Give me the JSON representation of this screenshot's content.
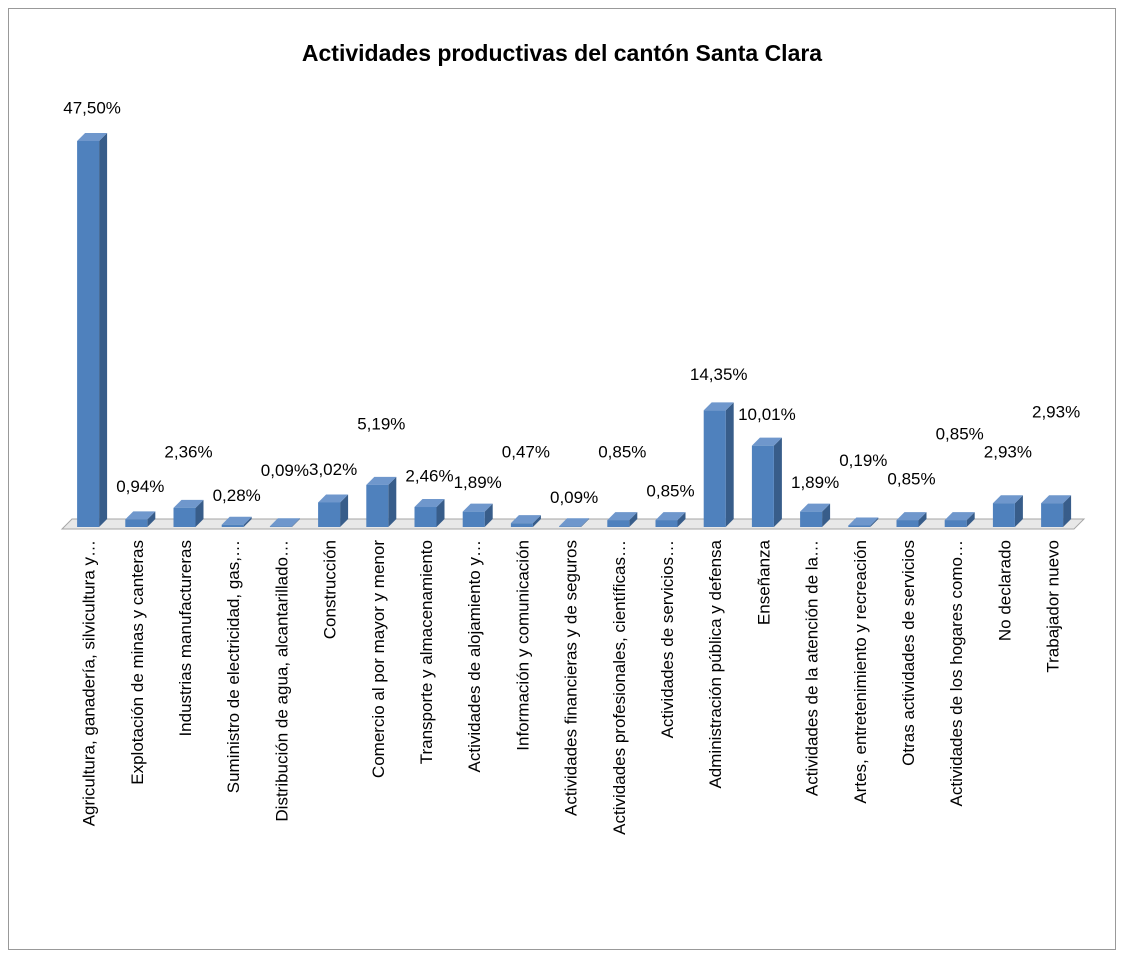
{
  "chart_data": {
    "type": "bar3d",
    "title": "Actividades productivas del cantón Santa Clara",
    "categories": [
      "Agricultura, ganadería, silvicultura y…",
      "Explotación de minas y canteras",
      "Industrias manufactureras",
      "Suministro de electricidad, gas,…",
      "Distribución de agua, alcantarillado…",
      "Construcción",
      "Comercio al por mayor y menor",
      "Transporte y almacenamiento",
      "Actividades de alojamiento y…",
      "Información y comunicación",
      "Actividades financieras y de seguros",
      "Actividades profesionales, científicas…",
      "Actividades de servicios…",
      "Administración pública y defensa",
      "Enseñanza",
      "Actividades de la atención de la…",
      "Artes, entretenimiento y recreación",
      "Otras actividades de servicios",
      "Actividades de los hogares como…",
      "No declarado",
      "Trabajador nuevo"
    ],
    "values": [
      47.5,
      0.94,
      2.36,
      0.28,
      0.09,
      3.02,
      5.19,
      2.46,
      1.89,
      0.47,
      0.09,
      0.85,
      0.85,
      14.35,
      10.01,
      1.89,
      0.19,
      0.85,
      0.85,
      2.93,
      2.93
    ],
    "value_labels": [
      "47,50%",
      "0,94%",
      "2,36%",
      "0,28%",
      "0,09%",
      "3,02%",
      "5,19%",
      "2,46%",
      "1,89%",
      "0,47%",
      "0,09%",
      "0,85%",
      "0,85%",
      "14,35%",
      "10,01%",
      "1,89%",
      "0,19%",
      "0,85%",
      "0,85%",
      "2,93%",
      "2,93%"
    ],
    "color": "#4f81bd"
  }
}
